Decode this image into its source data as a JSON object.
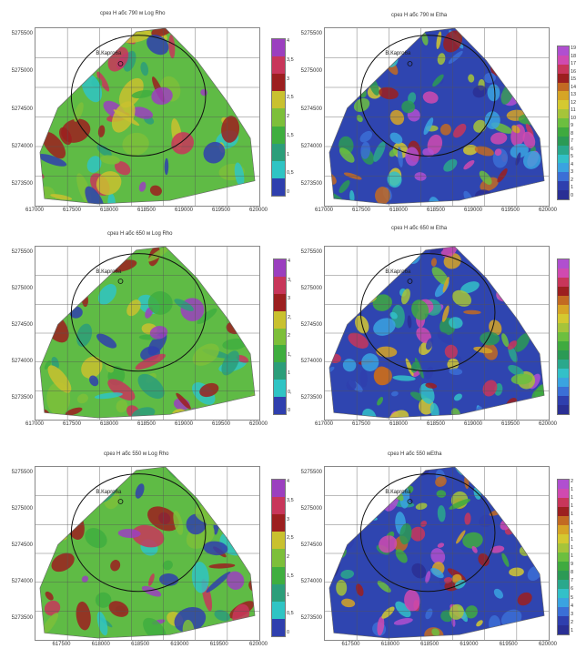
{
  "panels": [
    {
      "title": "срез Н абс 790 м Log Rho",
      "village": "В.Карго6а",
      "y_ticks": [
        "5275500",
        "5275000",
        "5274500",
        "5274000",
        "5273500"
      ],
      "x_ticks": [
        "617000",
        "617500",
        "618000",
        "618500",
        "619000",
        "619500",
        "620000"
      ],
      "colorbar_labels": [
        "4",
        "3,5",
        "3",
        "2,5",
        "2",
        "1,5",
        "1",
        "0,5",
        "0"
      ],
      "scheme": "rho"
    },
    {
      "title": "срез Н абс 790 м Etha",
      "village": "В.Карго6а",
      "y_ticks": [
        "5275500",
        "5275000",
        "5274500",
        "5274000",
        "5273500"
      ],
      "x_ticks": [
        "617000",
        "617500",
        "618000",
        "618500",
        "619000",
        "619500",
        "620000"
      ],
      "colorbar_labels": [
        "19",
        "18",
        "17",
        "16",
        "15",
        "14",
        "13",
        "12",
        "11",
        "10",
        "9",
        "8",
        "7",
        "6",
        "5",
        "4",
        "3",
        "2",
        "1",
        "0"
      ],
      "scheme": "etha"
    },
    {
      "title": "срез Н абс 650 м Log Rho",
      "village": "В.Карго6а",
      "y_ticks": [
        "5275500",
        "5275000",
        "5274500",
        "5274000",
        "5273500"
      ],
      "x_ticks": [
        "617000",
        "617500",
        "618000",
        "618500",
        "619000",
        "619500",
        "620000"
      ],
      "colorbar_labels": [
        "4",
        "3,",
        "3",
        "2,",
        "2",
        "1,",
        "1",
        "0,",
        "0"
      ],
      "scheme": "rho"
    },
    {
      "title": "срез Н абс 650 м Etha",
      "village": "В.Карго6а",
      "y_ticks": [
        "5275500",
        "5275000",
        "5274500",
        "5274000",
        "5273500"
      ],
      "x_ticks": [
        "617000",
        "617500",
        "618000",
        "618500",
        "619000",
        "619500",
        "620000"
      ],
      "colorbar_labels": [],
      "scheme": "etha"
    },
    {
      "title": "срез Н абс 550 м Log Rho",
      "village": "В.Карго6а",
      "y_ticks": [
        "5275500",
        "5275000",
        "5274500",
        "5274000",
        "5273500"
      ],
      "x_ticks": [
        "617500",
        "618000",
        "618500",
        "619000",
        "619500",
        "620000"
      ],
      "colorbar_labels": [
        "4",
        "3,5",
        "3",
        "2,5",
        "2",
        "1,5",
        "1",
        "0,5",
        "0"
      ],
      "scheme": "rho"
    },
    {
      "title": "срез Н абс 550 мEtha",
      "village": "В.Карго6а",
      "y_ticks": [
        "5275500",
        "5275000",
        "5274500",
        "5274000",
        "5273500"
      ],
      "x_ticks": [
        "617500",
        "618000",
        "618500",
        "619000",
        "619500",
        "620000"
      ],
      "colorbar_labels": [
        "2",
        "1",
        "1",
        "1",
        "1",
        "1",
        "1",
        "1",
        "1",
        "1",
        "9",
        "8",
        "7",
        "6",
        "5",
        "4",
        "3",
        "2",
        "1"
      ],
      "scheme": "etha"
    }
  ],
  "colors": {
    "rho": [
      "#9b3fbf",
      "#c8365a",
      "#9c1f1f",
      "#c9c12f",
      "#7dbf3a",
      "#3fae3f",
      "#2c9e7a",
      "#2fc4c4",
      "#2f3fae"
    ],
    "etha": [
      "#b04fd0",
      "#d04ab0",
      "#c8365a",
      "#9c1f1f",
      "#c26a22",
      "#d6a526",
      "#d4c930",
      "#a6c43a",
      "#6cbf3f",
      "#3faa3f",
      "#2b9a55",
      "#2aa88c",
      "#33c0c8",
      "#3aa3e0",
      "#3b6fd6",
      "#2f3fae",
      "#2a2f94"
    ]
  }
}
